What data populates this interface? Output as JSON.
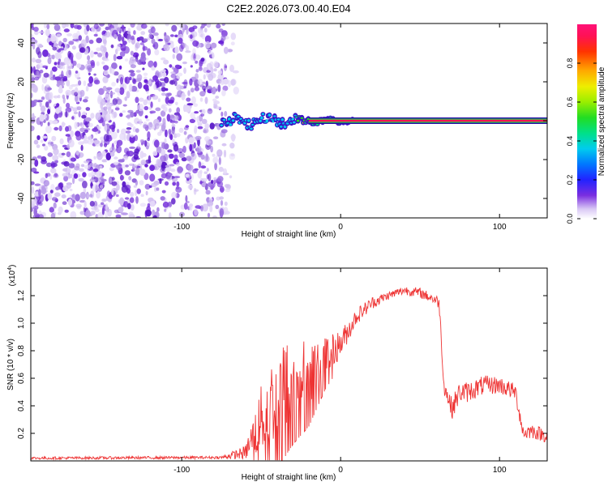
{
  "title": "C2E2.2026.073.00.40.E04",
  "chart_data": [
    {
      "type": "heatmap",
      "name": "spectrogram",
      "xlabel": "Height of straight line (km)",
      "ylabel": "Frequency (Hz)",
      "xlim": [
        -195,
        130
      ],
      "ylim": [
        -50,
        50
      ],
      "xticks": [
        -100,
        0,
        100
      ],
      "xtick_labels": [
        "-100",
        "0",
        "100"
      ],
      "yticks": [
        -40,
        -20,
        0,
        20,
        40
      ],
      "ytick_labels": [
        "-40",
        "-20",
        "0",
        "20",
        "40"
      ],
      "colorbar": {
        "label": "Normalized spectral amplitude",
        "range": [
          0,
          1
        ],
        "ticks": [
          0.0,
          0.2,
          0.4,
          0.6,
          0.8
        ],
        "tick_labels": [
          "0.0",
          "0.2",
          "0.4",
          "0.6",
          "0.8"
        ]
      },
      "noise_region_x": [
        -195,
        -75
      ],
      "signal_line": {
        "frequency": 0,
        "x_start": -75,
        "x_end": 130
      }
    },
    {
      "type": "line",
      "name": "snr",
      "xlabel": "Height of straight line (km)",
      "ylabel": "SNR (10 * v/v)",
      "scale_label": "(x10",
      "scale_exponent": "4",
      "xlim": [
        -195,
        130
      ],
      "ylim": [
        0,
        1.4
      ],
      "xticks": [
        -100,
        0,
        100
      ],
      "xtick_labels": [
        "-100",
        "0",
        "100"
      ],
      "yticks": [
        0.2,
        0.4,
        0.6,
        0.8,
        1.0,
        1.2
      ],
      "ytick_labels": [
        "0.2",
        "0.4",
        "0.6",
        "0.8",
        "1.0",
        "1.2"
      ],
      "color": "#ee3333",
      "envelope_x": [
        -195,
        -75,
        -60,
        -50,
        -40,
        -30,
        -20,
        -10,
        0,
        10,
        20,
        30,
        40,
        50,
        58,
        62,
        65,
        70,
        75,
        80,
        90,
        100,
        110,
        115,
        120,
        130
      ],
      "envelope_y": [
        0.02,
        0.025,
        0.06,
        0.3,
        0.5,
        0.6,
        0.65,
        0.75,
        0.85,
        1.05,
        1.15,
        1.2,
        1.24,
        1.22,
        1.18,
        1.15,
        0.55,
        0.38,
        0.5,
        0.5,
        0.55,
        0.55,
        0.5,
        0.2,
        0.22,
        0.18
      ],
      "noise_amplitude": [
        [
          -75,
          0.01
        ],
        [
          -60,
          0.05
        ],
        [
          -50,
          0.25
        ],
        [
          -40,
          0.35
        ],
        [
          -30,
          0.3
        ],
        [
          -20,
          0.25
        ],
        [
          -10,
          0.15
        ],
        [
          0,
          0.1
        ],
        [
          10,
          0.06
        ],
        [
          30,
          0.03
        ],
        [
          60,
          0.04
        ],
        [
          70,
          0.08
        ],
        [
          130,
          0.05
        ]
      ]
    }
  ]
}
